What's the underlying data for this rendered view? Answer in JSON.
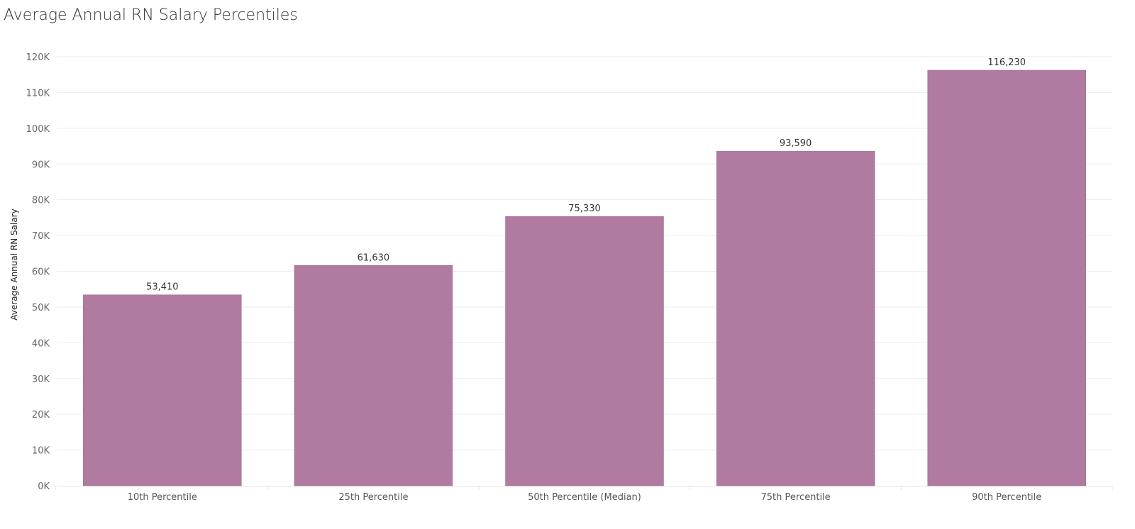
{
  "chart_data": {
    "type": "bar",
    "title": "Average Annual RN Salary Percentiles",
    "xlabel": "",
    "ylabel": "Average Annual RN Salary",
    "categories": [
      "10th Percentile",
      "25th Percentile",
      "50th Percentile (Median)",
      "75th Percentile",
      "90th Percentile"
    ],
    "values": [
      53410,
      61630,
      75330,
      93590,
      116230
    ],
    "value_labels": [
      "53,410",
      "61,630",
      "75,330",
      "93,590",
      "116,230"
    ],
    "ylim": [
      0,
      120000
    ],
    "yticks": [
      0,
      10000,
      20000,
      30000,
      40000,
      50000,
      60000,
      70000,
      80000,
      90000,
      100000,
      110000,
      120000
    ],
    "ytick_labels": [
      "0K",
      "10K",
      "20K",
      "30K",
      "40K",
      "50K",
      "60K",
      "70K",
      "80K",
      "90K",
      "100K",
      "110K",
      "120K"
    ],
    "bar_color": "#b07aa1",
    "grid": true,
    "legend": "none"
  }
}
